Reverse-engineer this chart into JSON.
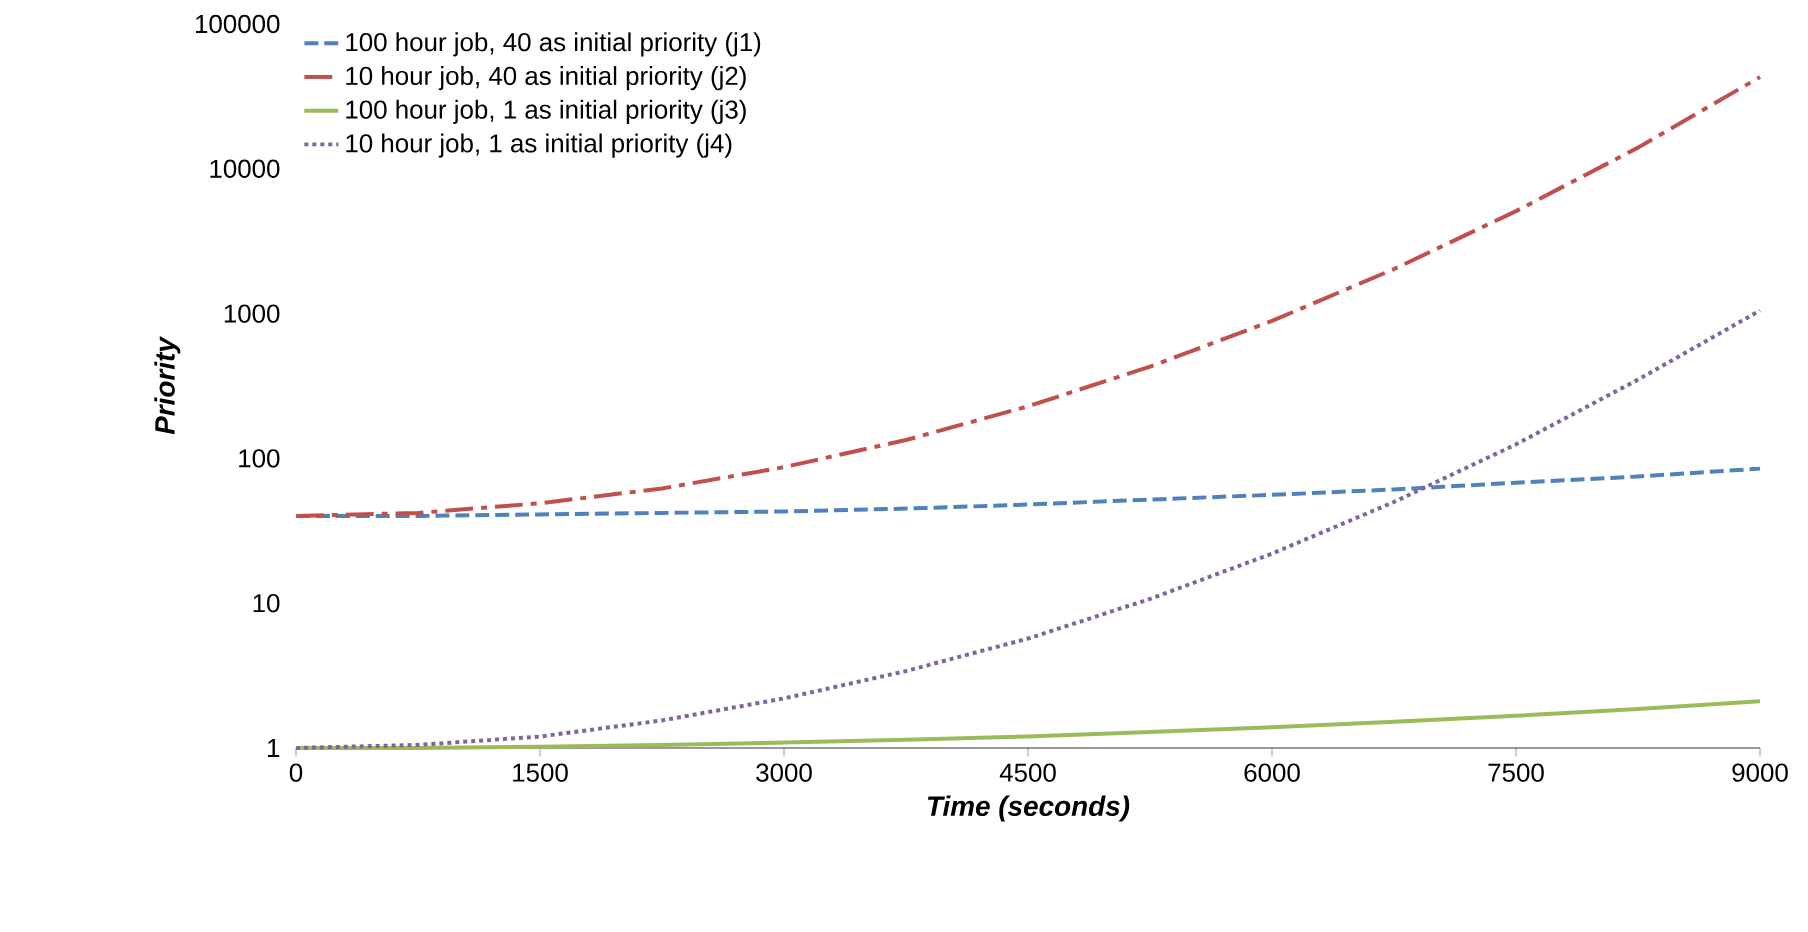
{
  "chart_data": {
    "type": "line",
    "xlabel": "Time (seconds)",
    "ylabel": "Priority",
    "log": "y",
    "x": [
      0,
      750,
      1500,
      2250,
      3000,
      3750,
      4500,
      5250,
      6000,
      6750,
      7500,
      8250,
      9000
    ],
    "xlim": [
      0,
      9000
    ],
    "xticks": [
      0,
      1500,
      3000,
      4500,
      6000,
      7500,
      9000
    ],
    "ylim": [
      1,
      100000
    ],
    "yticks": [
      1,
      10,
      100,
      1000,
      10000,
      100000
    ],
    "grid": false,
    "legend": "top left",
    "series": [
      {
        "name": "100 hour job, 40 as initial priority (j1)",
        "color": "#4f81bd",
        "line_style": "dashed",
        "values": [
          40,
          40,
          41,
          42,
          43,
          45,
          48,
          52,
          56,
          61,
          68,
          75,
          85
        ]
      },
      {
        "name": "10 hour job, 40 as initial priority (j2)",
        "color": "#c0504d",
        "line_style": "dashdot",
        "values": [
          40,
          42,
          49,
          62,
          87,
          134,
          229,
          430,
          890,
          2030,
          5100,
          14000,
          43000
        ]
      },
      {
        "name": "100 hour job, 1 as initial priority (j3)",
        "color": "#9bbb59",
        "line_style": "solid",
        "values": [
          1,
          1,
          1.02,
          1.05,
          1.09,
          1.14,
          1.2,
          1.29,
          1.39,
          1.52,
          1.67,
          1.86,
          2.1
        ]
      },
      {
        "name": "10 hour job, 1 as initial priority (j4)",
        "color": "#8064a2",
        "line_style": "dotted",
        "values": [
          1,
          1.05,
          1.2,
          1.55,
          2.2,
          3.4,
          5.7,
          10.7,
          22,
          50,
          125,
          350,
          1050
        ]
      }
    ]
  }
}
